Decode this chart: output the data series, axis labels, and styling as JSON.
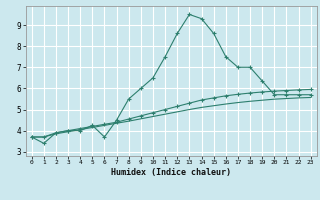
{
  "xlabel": "Humidex (Indice chaleur)",
  "bg_color": "#cce8ee",
  "grid_color": "#ffffff",
  "line_color": "#2d7f6e",
  "xlim": [
    -0.5,
    23.5
  ],
  "ylim": [
    2.8,
    9.9
  ],
  "x_ticks": [
    0,
    1,
    2,
    3,
    4,
    5,
    6,
    7,
    8,
    9,
    10,
    11,
    12,
    13,
    14,
    15,
    16,
    17,
    18,
    19,
    20,
    21,
    22,
    23
  ],
  "y_ticks": [
    3,
    4,
    5,
    6,
    7,
    8,
    9
  ],
  "line1_x": [
    0,
    1,
    2,
    3,
    4,
    5,
    6,
    7,
    8,
    9,
    10,
    11,
    12,
    13,
    14,
    15,
    16,
    17,
    18,
    19,
    20,
    21,
    22,
    23
  ],
  "line1_y": [
    3.7,
    3.4,
    3.9,
    4.0,
    4.0,
    4.25,
    3.7,
    4.5,
    5.5,
    6.0,
    6.5,
    7.5,
    8.6,
    9.5,
    9.3,
    8.6,
    7.5,
    7.0,
    7.0,
    6.35,
    5.7,
    5.7,
    5.7,
    5.7
  ],
  "line2_x": [
    0,
    1,
    2,
    3,
    4,
    5,
    6,
    7,
    8,
    9,
    10,
    11,
    12,
    13,
    14,
    15,
    16,
    17,
    18,
    19,
    20,
    21,
    22,
    23
  ],
  "line2_y": [
    3.7,
    3.7,
    3.9,
    4.0,
    4.1,
    4.2,
    4.3,
    4.4,
    4.55,
    4.7,
    4.85,
    5.0,
    5.15,
    5.3,
    5.45,
    5.55,
    5.65,
    5.72,
    5.78,
    5.83,
    5.87,
    5.9,
    5.93,
    5.95
  ],
  "line3_x": [
    0,
    1,
    2,
    3,
    4,
    5,
    6,
    7,
    8,
    9,
    10,
    11,
    12,
    13,
    14,
    15,
    16,
    17,
    18,
    19,
    20,
    21,
    22,
    23
  ],
  "line3_y": [
    3.7,
    3.7,
    3.85,
    3.95,
    4.05,
    4.15,
    4.25,
    4.35,
    4.45,
    4.56,
    4.67,
    4.78,
    4.89,
    5.0,
    5.1,
    5.18,
    5.26,
    5.33,
    5.39,
    5.44,
    5.49,
    5.52,
    5.55,
    5.57
  ]
}
